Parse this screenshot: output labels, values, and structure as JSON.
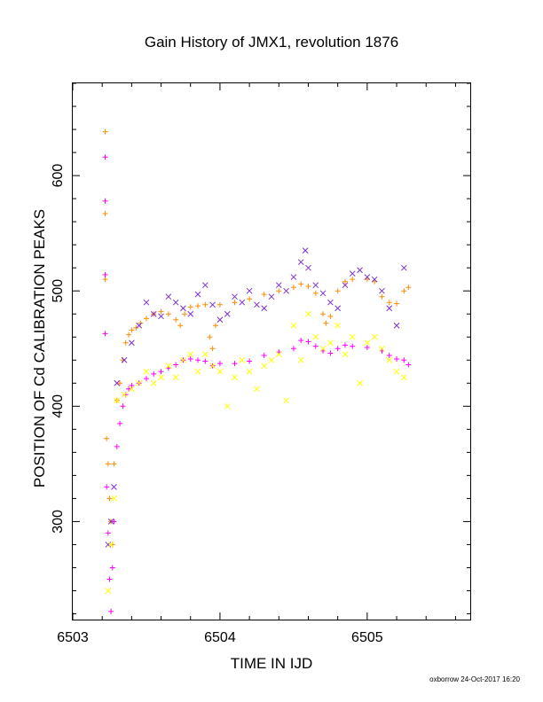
{
  "chart_data": {
    "type": "scatter",
    "title": "Gain History of JMX1, revolution 1876",
    "xlabel": "TIME IN IJD",
    "ylabel": "POSITION OF Cd CALIBRATION PEAKS",
    "xlim": [
      6503.0,
      6505.7
    ],
    "ylim": [
      215,
      680
    ],
    "xticks": [
      6503,
      6504,
      6505
    ],
    "yticks": [
      300,
      400,
      500,
      600
    ],
    "grid": false,
    "legend": "none",
    "series": [
      {
        "color": "#ff8c00",
        "marker": "plus",
        "x": [
          6503.22,
          6503.22,
          6503.22,
          6503.23,
          6503.24,
          6503.25,
          6503.26,
          6503.27,
          6503.28,
          6503.3,
          6503.32,
          6503.34,
          6503.36,
          6503.38,
          6503.4,
          6503.43,
          6503.46,
          6503.5,
          6503.55,
          6503.6,
          6503.65,
          6503.7,
          6503.73,
          6503.76,
          6503.8,
          6503.85,
          6503.9,
          6503.93,
          6503.95,
          6503.97,
          6504.0,
          6504.1,
          6504.2,
          6504.3,
          6504.4,
          6504.5,
          6504.55,
          6504.6,
          6504.65,
          6504.7,
          6504.72,
          6504.75,
          6504.8,
          6504.85,
          6504.9,
          6505.0,
          6505.05,
          6505.1,
          6505.15,
          6505.2,
          6505.25,
          6505.28
        ],
        "y": [
          638,
          567,
          510,
          372,
          350,
          320,
          300,
          280,
          350,
          405,
          420,
          440,
          455,
          462,
          466,
          468,
          472,
          476,
          480,
          482,
          480,
          475,
          470,
          480,
          486,
          487,
          488,
          460,
          450,
          470,
          488,
          490,
          493,
          497,
          500,
          503,
          506,
          504,
          498,
          480,
          472,
          478,
          500,
          508,
          510,
          510,
          508,
          495,
          490,
          489,
          500,
          503
        ]
      },
      {
        "color": "#ff00ff",
        "marker": "plus",
        "x": [
          6503.22,
          6503.22,
          6503.22,
          6503.22,
          6503.23,
          6503.24,
          6503.25,
          6503.26,
          6503.27,
          6503.28,
          6503.3,
          6503.32,
          6503.34,
          6503.36,
          6503.38,
          6503.4,
          6503.45,
          6503.5,
          6503.55,
          6503.6,
          6503.65,
          6503.7,
          6503.75,
          6503.8,
          6503.85,
          6503.9,
          6503.95,
          6504.0,
          6504.1,
          6504.2,
          6504.3,
          6504.4,
          6504.5,
          6504.55,
          6504.6,
          6504.65,
          6504.7,
          6504.75,
          6504.8,
          6504.85,
          6504.9,
          6505.0,
          6505.1,
          6505.15,
          6505.2,
          6505.25,
          6505.28
        ],
        "y": [
          616,
          578,
          514,
          463,
          330,
          290,
          250,
          222,
          260,
          300,
          365,
          385,
          400,
          410,
          415,
          418,
          420,
          424,
          428,
          430,
          433,
          436,
          440,
          441,
          440,
          439,
          435,
          437,
          437,
          439,
          444,
          447,
          450,
          457,
          456,
          452,
          448,
          446,
          450,
          453,
          452,
          451,
          448,
          444,
          441,
          440,
          436
        ]
      },
      {
        "color": "#7b2fd0",
        "marker": "cross",
        "x": [
          6503.24,
          6503.26,
          6503.28,
          6503.3,
          6503.35,
          6503.4,
          6503.45,
          6503.5,
          6503.55,
          6503.6,
          6503.65,
          6503.7,
          6503.75,
          6503.8,
          6503.85,
          6503.9,
          6503.95,
          6504.0,
          6504.05,
          6504.1,
          6504.15,
          6504.2,
          6504.25,
          6504.3,
          6504.35,
          6504.4,
          6504.45,
          6504.5,
          6504.55,
          6504.58,
          6504.6,
          6504.65,
          6504.7,
          6504.75,
          6504.8,
          6504.85,
          6504.9,
          6504.95,
          6505.0,
          6505.05,
          6505.1,
          6505.15,
          6505.2,
          6505.25
        ],
        "y": [
          280,
          300,
          330,
          420,
          440,
          455,
          470,
          490,
          480,
          478,
          495,
          490,
          485,
          480,
          497,
          505,
          488,
          475,
          480,
          495,
          490,
          500,
          488,
          485,
          495,
          505,
          500,
          512,
          525,
          535,
          520,
          505,
          498,
          490,
          485,
          505,
          515,
          518,
          512,
          510,
          500,
          485,
          470,
          520
        ]
      },
      {
        "color": "#ffff00",
        "marker": "cross",
        "x": [
          6503.24,
          6503.26,
          6503.28,
          6503.3,
          6503.35,
          6503.4,
          6503.45,
          6503.5,
          6503.55,
          6503.6,
          6503.65,
          6503.7,
          6503.75,
          6503.8,
          6503.85,
          6503.9,
          6503.95,
          6504.0,
          6504.05,
          6504.1,
          6504.15,
          6504.2,
          6504.25,
          6504.3,
          6504.35,
          6504.4,
          6504.45,
          6504.5,
          6504.55,
          6504.6,
          6504.65,
          6504.7,
          6504.75,
          6504.8,
          6504.85,
          6504.9,
          6504.95,
          6505.0,
          6505.05,
          6505.1,
          6505.15,
          6505.2,
          6505.25
        ],
        "y": [
          240,
          280,
          320,
          405,
          410,
          415,
          420,
          430,
          420,
          425,
          435,
          425,
          440,
          445,
          430,
          445,
          435,
          430,
          400,
          425,
          440,
          430,
          415,
          435,
          440,
          445,
          405,
          470,
          440,
          480,
          460,
          450,
          455,
          470,
          445,
          460,
          420,
          455,
          460,
          450,
          440,
          430,
          425
        ]
      }
    ]
  },
  "footer": {
    "stamp": "oxborrow 24-Oct-2017 16:20"
  }
}
